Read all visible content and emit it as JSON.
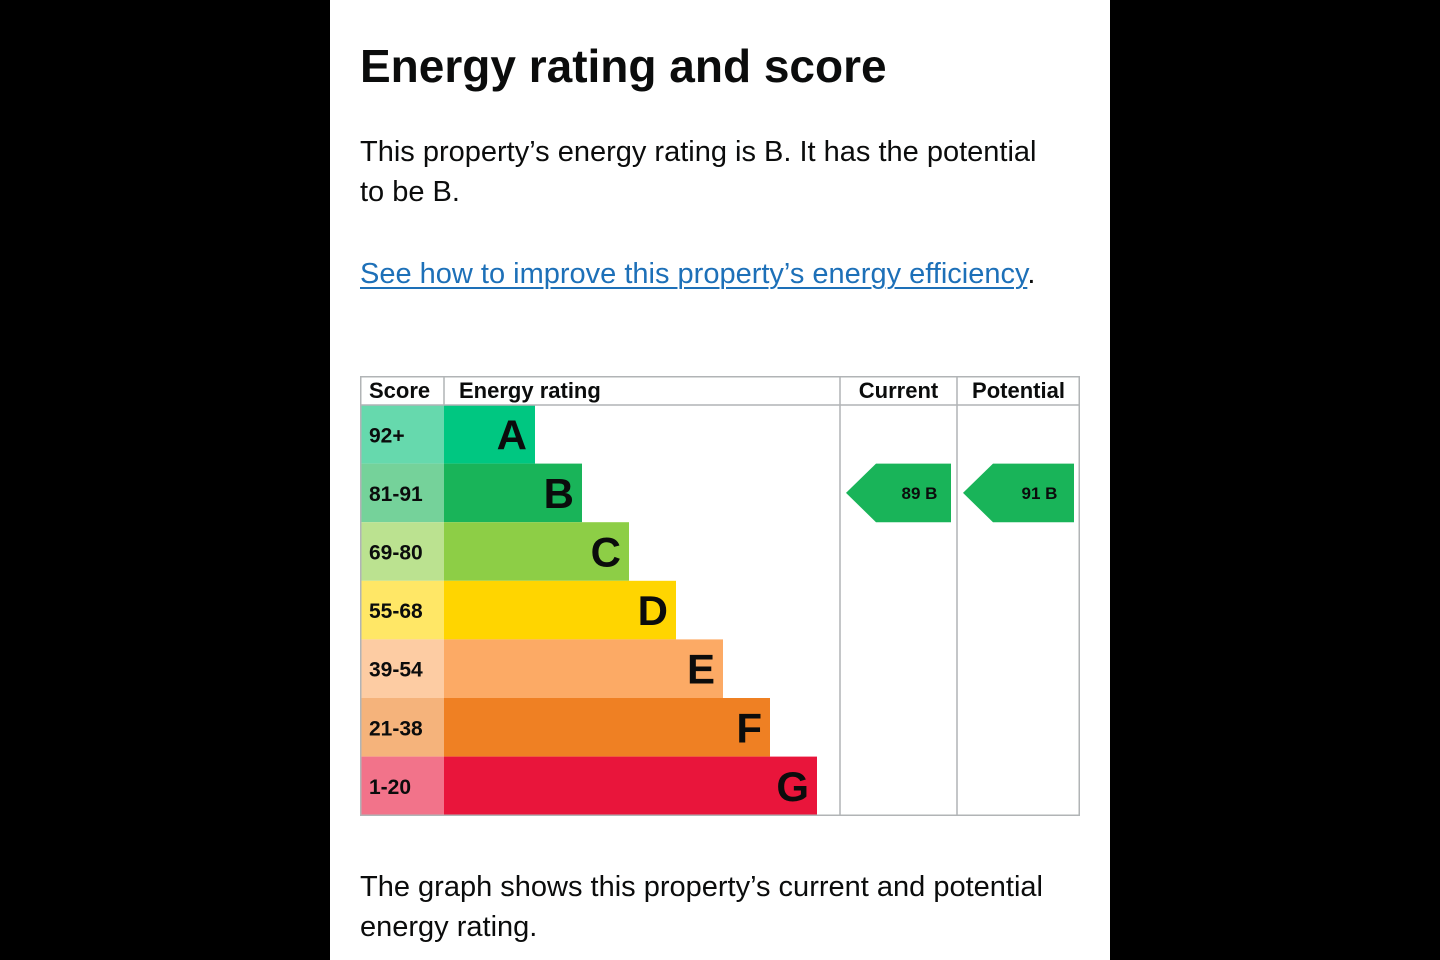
{
  "heading": "Energy rating and score",
  "intro_text": "This property’s energy rating is B. It has the potential to be B.",
  "improve_link": {
    "link_text": "See how to improve this property’s energy efficiency",
    "trailing": "."
  },
  "outro_text": "The graph shows this property’s current and potential energy rating.",
  "chart_data": {
    "type": "table",
    "headers": {
      "score": "Score",
      "rating": "Energy rating",
      "current": "Current",
      "potential": "Potential"
    },
    "bands": [
      {
        "letter": "A",
        "score_range": "92+",
        "band_color": "#00c781",
        "score_color": "#66d9ad"
      },
      {
        "letter": "B",
        "score_range": "81-91",
        "band_color": "#19b459",
        "score_color": "#75d29a"
      },
      {
        "letter": "C",
        "score_range": "69-80",
        "band_color": "#8dce46",
        "score_color": "#bbe290"
      },
      {
        "letter": "D",
        "score_range": "55-68",
        "band_color": "#ffd500",
        "score_color": "#ffe766"
      },
      {
        "letter": "E",
        "score_range": "39-54",
        "band_color": "#fcaa65",
        "score_color": "#fdcca3"
      },
      {
        "letter": "F",
        "score_range": "21-38",
        "band_color": "#ef8023",
        "score_color": "#f5b37b"
      },
      {
        "letter": "G",
        "score_range": "1-20",
        "band_color": "#e9153b",
        "score_color": "#f2738a"
      }
    ],
    "current": {
      "score": 89,
      "letter": "B",
      "label": "89  B"
    },
    "potential": {
      "score": 91,
      "letter": "B",
      "label": "91  B"
    }
  }
}
